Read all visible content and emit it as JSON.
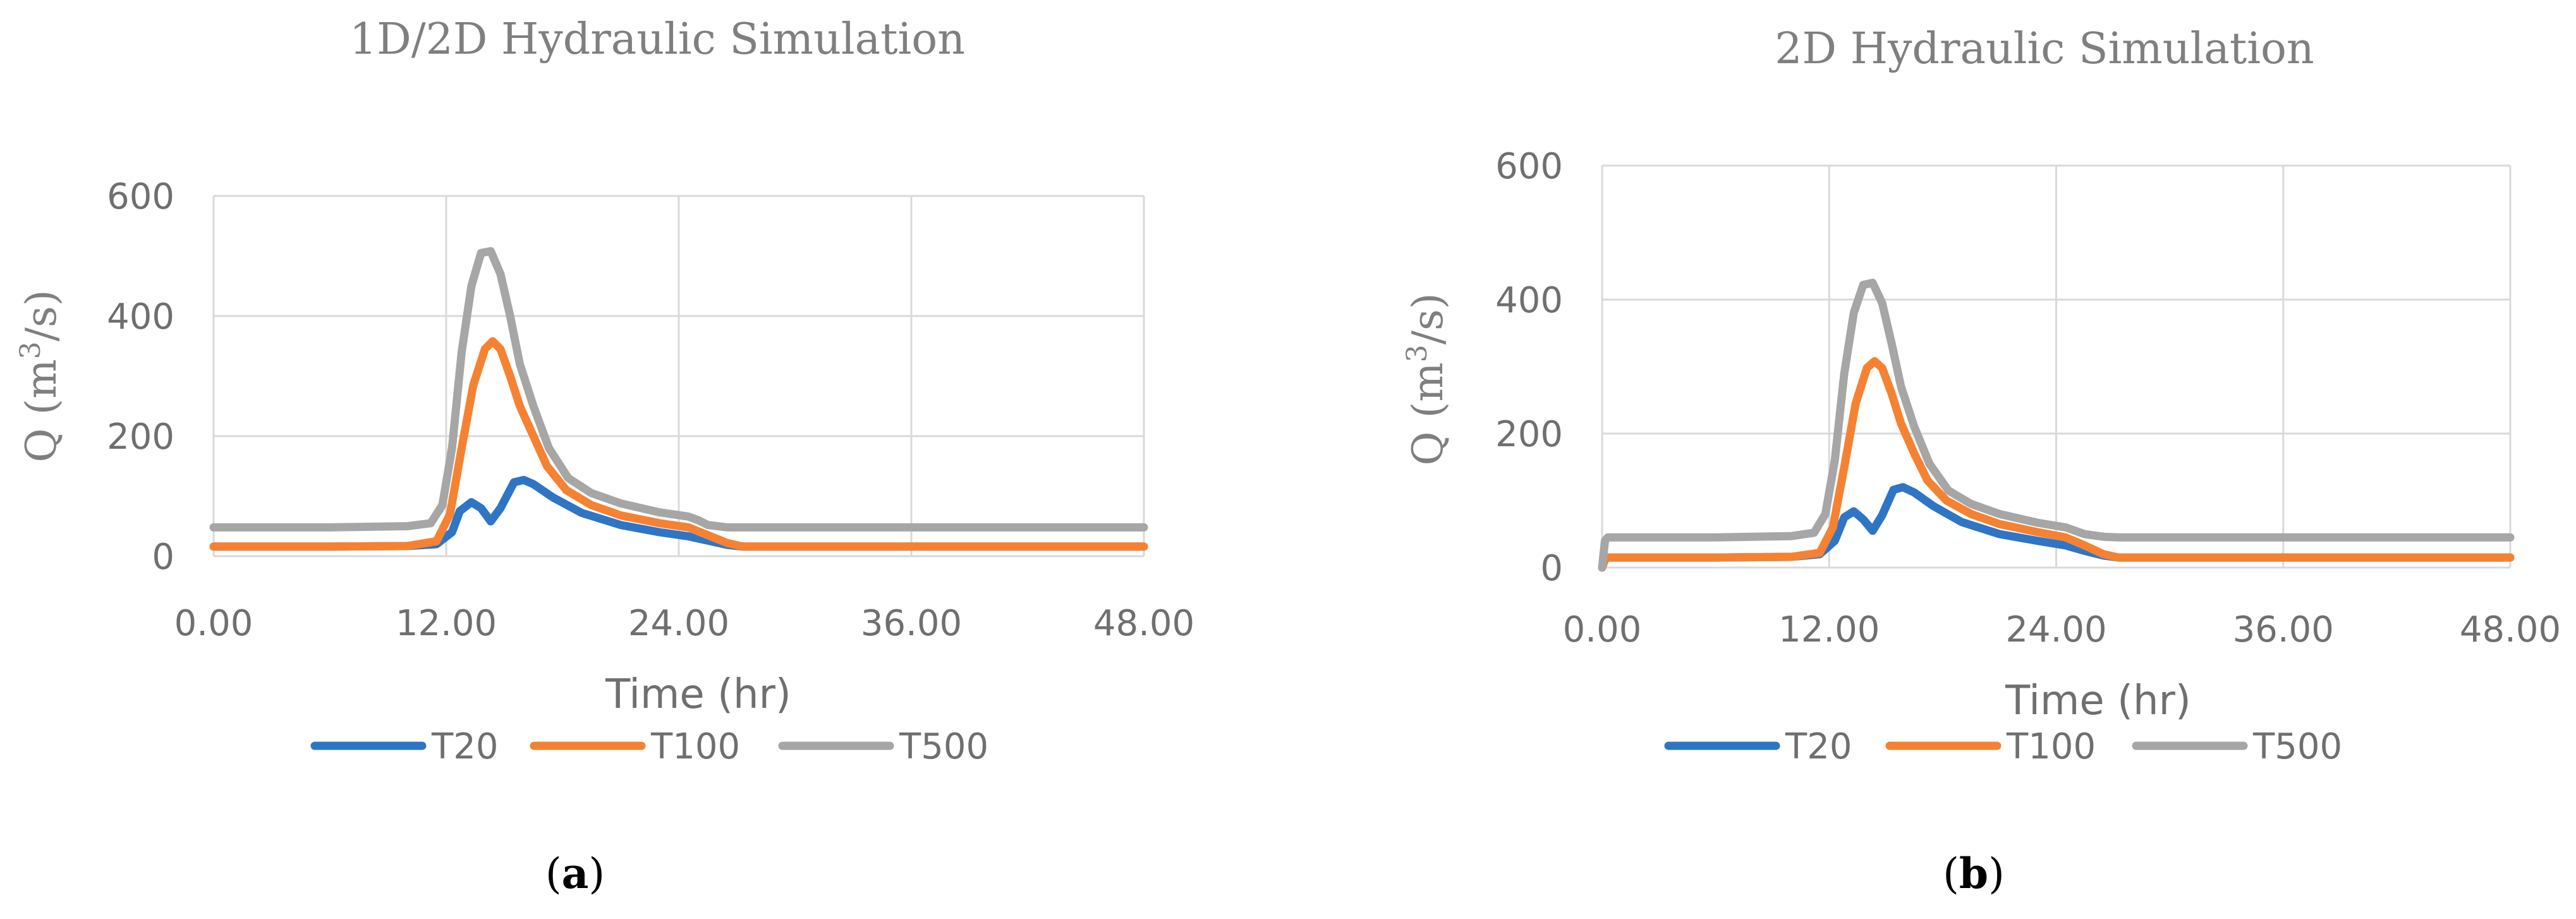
{
  "colors": {
    "T20": "#2e75c6",
    "T100": "#f58232",
    "T500": "#a6a6a6",
    "grid": "#d9d9d9",
    "text": "#6f6f6f"
  },
  "chart_data": [
    {
      "type": "line",
      "panel_label": "a",
      "title": "1D/2D Hydraulic Simulation",
      "xlabel": "Time (hr)",
      "ylabel": "Q (m3/s)",
      "ylabel_parts": {
        "pre": "Q (m",
        "sup": "3",
        "post": "/s)"
      },
      "xlim": [
        0,
        48
      ],
      "ylim": [
        0,
        600
      ],
      "xticks": [
        0,
        12,
        24,
        36,
        48
      ],
      "xtick_labels": [
        "0.00",
        "12.00",
        "24.00",
        "36.00",
        "48.00"
      ],
      "yticks": [
        0,
        200,
        400,
        600
      ],
      "ytick_labels": [
        "0",
        "200",
        "400",
        "600"
      ],
      "grid": true,
      "legend": "bottom",
      "series": [
        {
          "name": "T20",
          "x": [
            0,
            6,
            10,
            11.5,
            12.3,
            12.7,
            13.3,
            13.8,
            14.3,
            14.8,
            15.5,
            16,
            16.5,
            17.5,
            19,
            21,
            23,
            24.5,
            25.5,
            26.5,
            27.3,
            30,
            36,
            42,
            48
          ],
          "y": [
            16,
            16,
            17,
            20,
            40,
            75,
            90,
            80,
            58,
            80,
            123,
            127,
            120,
            98,
            72,
            52,
            40,
            33,
            26,
            19,
            16,
            16,
            16,
            16,
            16
          ]
        },
        {
          "name": "T100",
          "x": [
            0,
            6,
            10,
            11.5,
            12.2,
            12.8,
            13.4,
            14,
            14.4,
            14.8,
            15.3,
            15.8,
            16.5,
            17.2,
            18.2,
            19.5,
            21,
            23,
            24.5,
            25.5,
            26.5,
            27.3,
            30,
            36,
            42,
            48
          ],
          "y": [
            16,
            16,
            17,
            25,
            70,
            180,
            285,
            345,
            358,
            345,
            300,
            250,
            200,
            150,
            110,
            85,
            68,
            55,
            48,
            35,
            22,
            16,
            16,
            16,
            16,
            16
          ]
        },
        {
          "name": "T500",
          "x": [
            0,
            6,
            10,
            11.2,
            11.8,
            12.3,
            12.8,
            13.3,
            13.8,
            14.3,
            14.8,
            15.3,
            15.8,
            16.5,
            17.3,
            18.3,
            19.5,
            21,
            23,
            24.5,
            25,
            25.5,
            26.5,
            27.3,
            30,
            36,
            42,
            48
          ],
          "y": [
            48,
            48,
            50,
            55,
            85,
            180,
            340,
            450,
            505,
            508,
            470,
            400,
            320,
            250,
            180,
            130,
            105,
            88,
            73,
            66,
            60,
            52,
            48,
            48,
            48,
            48,
            48,
            48
          ]
        }
      ]
    },
    {
      "type": "line",
      "panel_label": "b",
      "title": "2D Hydraulic Simulation",
      "xlabel": "Time (hr)",
      "ylabel": "Q (m3/s)",
      "ylabel_parts": {
        "pre": "Q (m",
        "sup": "3",
        "post": "/s)"
      },
      "xlim": [
        0,
        48
      ],
      "ylim": [
        0,
        600
      ],
      "xticks": [
        0,
        12,
        24,
        36,
        48
      ],
      "xtick_labels": [
        "0.00",
        "12.00",
        "24.00",
        "36.00",
        "48.00"
      ],
      "yticks": [
        0,
        200,
        400,
        600
      ],
      "ytick_labels": [
        "0",
        "200",
        "400",
        "600"
      ],
      "grid": true,
      "legend": "bottom",
      "series": [
        {
          "name": "T20",
          "x": [
            0,
            0.15,
            0.3,
            6,
            10,
            11.5,
            12.3,
            12.8,
            13.3,
            13.8,
            14.3,
            14.8,
            15.4,
            15.9,
            16.5,
            17.5,
            19,
            21,
            23,
            24.5,
            25.5,
            26.5,
            27.3,
            30,
            36,
            42,
            48
          ],
          "y": [
            0,
            12,
            15,
            15,
            16,
            20,
            40,
            75,
            84,
            72,
            55,
            78,
            116,
            120,
            112,
            92,
            68,
            50,
            40,
            33,
            25,
            18,
            15,
            15,
            15,
            15,
            15
          ]
        },
        {
          "name": "T100",
          "x": [
            0,
            0.15,
            0.3,
            6,
            10,
            11.5,
            12.2,
            12.8,
            13.4,
            14,
            14.4,
            14.8,
            15.3,
            15.8,
            16.5,
            17.2,
            18.2,
            19.5,
            21,
            23,
            24.5,
            25.5,
            26.5,
            27.3,
            30,
            36,
            42,
            48
          ],
          "y": [
            0,
            12,
            15,
            15,
            16,
            22,
            60,
            150,
            245,
            298,
            308,
            298,
            260,
            215,
            170,
            130,
            100,
            80,
            65,
            53,
            45,
            33,
            20,
            15,
            15,
            15,
            15,
            15
          ]
        },
        {
          "name": "T500",
          "x": [
            0,
            0.15,
            0.3,
            6,
            10,
            11.2,
            11.8,
            12.3,
            12.8,
            13.3,
            13.8,
            14.3,
            14.8,
            15.3,
            15.8,
            16.5,
            17.3,
            18.3,
            19.5,
            21,
            23,
            24.5,
            25,
            25.5,
            26.5,
            27.3,
            30,
            36,
            42,
            48
          ],
          "y": [
            0,
            40,
            45,
            45,
            47,
            52,
            80,
            160,
            290,
            380,
            422,
            425,
            395,
            335,
            270,
            210,
            155,
            115,
            95,
            80,
            67,
            60,
            55,
            50,
            46,
            45,
            45,
            45,
            45,
            45
          ]
        }
      ]
    }
  ]
}
